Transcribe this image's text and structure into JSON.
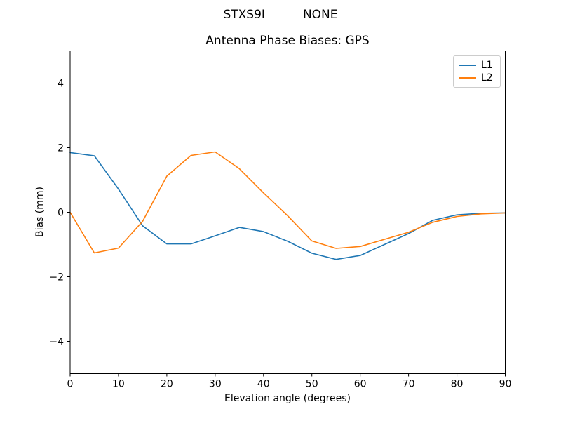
{
  "figure": {
    "suptitle": "STXS9I          NONE",
    "title": "Antenna Phase Biases: GPS"
  },
  "colors": {
    "background": "#ffffff",
    "axes_frame": "#000000",
    "text": "#000000",
    "legend_border": "#cccccc",
    "l1": "#1f77b4",
    "l2": "#ff7f0e"
  },
  "chart_data": {
    "type": "line",
    "suptitle": "STXS9I          NONE",
    "title": "Antenna Phase Biases: GPS",
    "xlabel": "Elevation angle (degrees)",
    "ylabel": "Bias (mm)",
    "xlim": [
      0,
      90
    ],
    "ylim": [
      -5,
      5
    ],
    "x_ticks": [
      0,
      10,
      20,
      30,
      40,
      50,
      60,
      70,
      80,
      90
    ],
    "y_ticks": [
      -4,
      -2,
      0,
      2,
      4
    ],
    "grid": false,
    "legend": {
      "position": "upper right",
      "entries": [
        "L1",
        "L2"
      ]
    },
    "x": [
      0,
      5,
      10,
      15,
      20,
      25,
      30,
      35,
      40,
      45,
      50,
      55,
      60,
      65,
      70,
      75,
      80,
      85,
      90
    ],
    "series": [
      {
        "name": "L1",
        "color": "#1f77b4",
        "values": [
          1.85,
          1.75,
          0.72,
          -0.42,
          -0.98,
          -0.98,
          -0.73,
          -0.47,
          -0.6,
          -0.9,
          -1.27,
          -1.46,
          -1.34,
          -1.0,
          -0.66,
          -0.25,
          -0.08,
          -0.03,
          -0.02
        ]
      },
      {
        "name": "L2",
        "color": "#ff7f0e",
        "values": [
          0.0,
          -1.26,
          -1.11,
          -0.28,
          1.12,
          1.76,
          1.87,
          1.35,
          0.6,
          -0.11,
          -0.89,
          -1.12,
          -1.06,
          -0.84,
          -0.62,
          -0.31,
          -0.13,
          -0.05,
          -0.02
        ]
      }
    ]
  }
}
